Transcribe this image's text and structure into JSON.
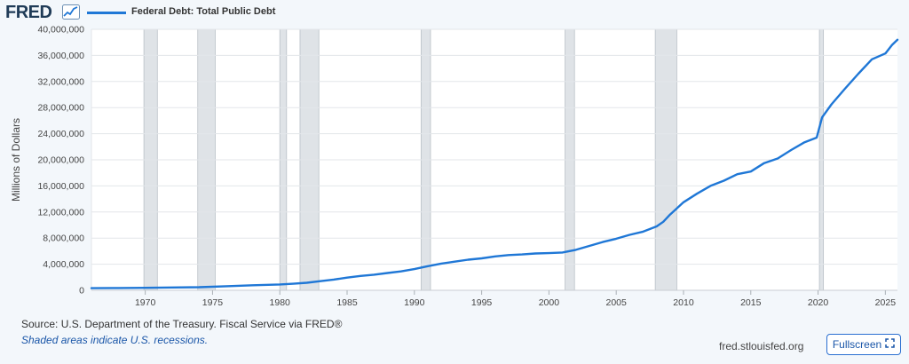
{
  "header": {
    "logo_text": "FRED",
    "series_label": "Federal Debt: Total Public Debt"
  },
  "footer": {
    "source": "Source: U.S. Department of the Treasury. Fiscal Service via FRED®",
    "recession_note": "Shaded areas indicate U.S. recessions.",
    "site": "fred.stlouisfed.org",
    "fullscreen_label": "Fullscreen"
  },
  "icons": {
    "logo_chart": "trend-chart-icon",
    "fullscreen": "expand-icon"
  },
  "colors": {
    "line": "#1f77d6",
    "recession": "#dfe3e7",
    "logo": "#1f3b57",
    "link": "#1a56a8"
  },
  "chart_data": {
    "type": "line",
    "title": "Federal Debt: Total Public Debt",
    "xlabel": "",
    "ylabel": "Millions of Dollars",
    "xlim": [
      1966,
      2025.9
    ],
    "ylim": [
      0,
      40000000
    ],
    "x_ticks": [
      1970,
      1975,
      1980,
      1985,
      1990,
      1995,
      2000,
      2005,
      2010,
      2015,
      2020,
      2025
    ],
    "y_ticks": [
      0,
      4000000,
      8000000,
      12000000,
      16000000,
      20000000,
      24000000,
      28000000,
      32000000,
      36000000,
      40000000
    ],
    "y_tick_labels": [
      "0",
      "4,000,000",
      "8,000,000",
      "12,000,000",
      "16,000,000",
      "20,000,000",
      "24,000,000",
      "28,000,000",
      "32,000,000",
      "36,000,000",
      "40,000,000"
    ],
    "grid": true,
    "recessions": [
      [
        1969.9,
        1970.9
      ],
      [
        1973.9,
        1975.2
      ],
      [
        1980.0,
        1980.5
      ],
      [
        1981.5,
        1982.9
      ],
      [
        1990.5,
        1991.2
      ],
      [
        2001.2,
        2001.9
      ],
      [
        2007.9,
        2009.5
      ],
      [
        2020.1,
        2020.4
      ]
    ],
    "series": [
      {
        "name": "Federal Debt: Total Public Debt",
        "x": [
          1966,
          1968,
          1970,
          1972,
          1974,
          1976,
          1978,
          1980,
          1981,
          1982,
          1983,
          1984,
          1985,
          1986,
          1987,
          1988,
          1989,
          1990,
          1991,
          1992,
          1993,
          1994,
          1995,
          1996,
          1997,
          1998,
          1999,
          2000,
          2001,
          2002,
          2003,
          2004,
          2005,
          2006,
          2007,
          2008,
          2008.5,
          2009,
          2010,
          2011,
          2012,
          2013,
          2014,
          2015,
          2016,
          2017,
          2018,
          2019,
          2019.9,
          2020.3,
          2021,
          2022,
          2023,
          2024,
          2025,
          2025.5,
          2025.9
        ],
        "values": [
          320000,
          350000,
          380000,
          430000,
          480000,
          620000,
          780000,
          900000,
          1000000,
          1150000,
          1400000,
          1650000,
          1950000,
          2200000,
          2400000,
          2650000,
          2900000,
          3250000,
          3700000,
          4100000,
          4400000,
          4700000,
          4900000,
          5200000,
          5400000,
          5500000,
          5650000,
          5700000,
          5800000,
          6200000,
          6800000,
          7400000,
          7900000,
          8500000,
          9000000,
          9800000,
          10500000,
          11600000,
          13500000,
          14800000,
          16000000,
          16800000,
          17800000,
          18200000,
          19500000,
          20200000,
          21500000,
          22700000,
          23400000,
          26500000,
          28500000,
          30900000,
          33200000,
          35400000,
          36300000,
          37600000,
          38400000
        ]
      }
    ]
  }
}
